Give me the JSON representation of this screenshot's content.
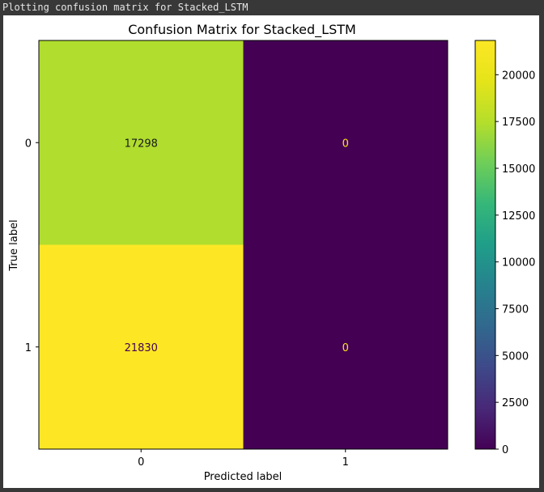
{
  "console": {
    "output_line": "Plotting confusion matrix for Stacked_LSTM"
  },
  "chart_data": {
    "type": "heatmap",
    "title": "Confusion Matrix for Stacked_LSTM",
    "xlabel": "Predicted label",
    "ylabel": "True label",
    "x_categories": [
      "0",
      "1"
    ],
    "y_categories": [
      "0",
      "1"
    ],
    "matrix": [
      [
        17298,
        0
      ],
      [
        21830,
        0
      ]
    ],
    "colormap": "viridis",
    "colorbar": {
      "min": 0,
      "max": 21830,
      "ticks": [
        0,
        2500,
        5000,
        7500,
        10000,
        12500,
        15000,
        17500,
        20000
      ]
    },
    "annotation_colors": {
      "on_light": "#1a1a1a",
      "on_dark": "#fde725",
      "on_max": "#440154"
    },
    "grid": false
  }
}
